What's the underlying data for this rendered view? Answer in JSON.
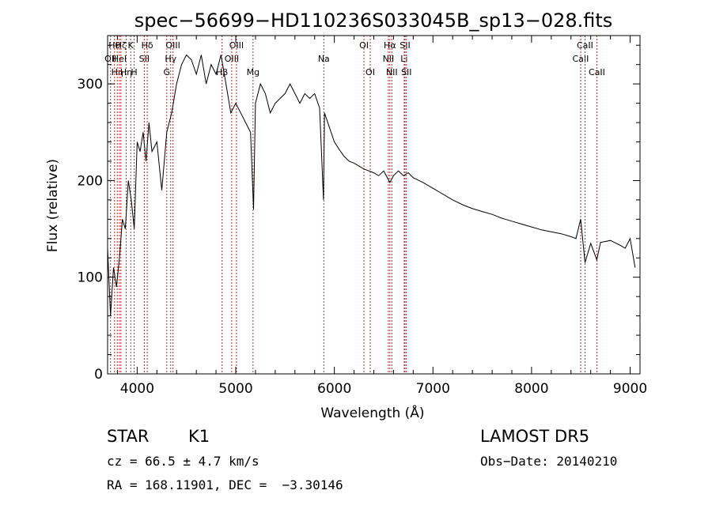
{
  "chart_data": {
    "type": "line",
    "title": "spec−56699−HD110236S033045B_sp13−028.fits",
    "xlabel": "Wavelength (Å)",
    "ylabel": "Flux (relative)",
    "xlim": [
      3700,
      9100
    ],
    "ylim": [
      0,
      350
    ],
    "xticks": [
      4000,
      5000,
      6000,
      7000,
      8000,
      9000
    ],
    "yticks": [
      0,
      100,
      200,
      300
    ],
    "grid": false,
    "series": [
      {
        "x": [
          3700,
          3730,
          3760,
          3790,
          3820,
          3850,
          3880,
          3910,
          3940,
          3970,
          4000,
          4030,
          4060,
          4090,
          4120,
          4150,
          4200,
          4250,
          4300,
          4350,
          4400,
          4450,
          4500,
          4550,
          4600,
          4650,
          4700,
          4750,
          4800,
          4850,
          4900,
          4950,
          5000,
          5050,
          5100,
          5150,
          5180,
          5200,
          5250,
          5300,
          5350,
          5400,
          5450,
          5500,
          5550,
          5600,
          5650,
          5700,
          5750,
          5800,
          5850,
          5890,
          5900,
          5950,
          6000,
          6050,
          6100,
          6150,
          6200,
          6250,
          6300,
          6350,
          6400,
          6450,
          6500,
          6563,
          6600,
          6650,
          6700,
          6750,
          6800,
          6900,
          7000,
          7100,
          7200,
          7300,
          7400,
          7500,
          7600,
          7700,
          7800,
          7900,
          8000,
          8100,
          8200,
          8300,
          8400,
          8450,
          8498,
          8542,
          8600,
          8662,
          8700,
          8800,
          8900,
          8950,
          9000,
          9050
        ],
        "y": [
          130,
          60,
          110,
          90,
          120,
          160,
          150,
          200,
          180,
          150,
          240,
          230,
          250,
          220,
          260,
          230,
          240,
          190,
          250,
          270,
          300,
          320,
          330,
          325,
          310,
          330,
          300,
          320,
          310,
          330,
          300,
          270,
          280,
          270,
          260,
          250,
          170,
          280,
          300,
          290,
          270,
          280,
          285,
          290,
          300,
          290,
          280,
          290,
          285,
          290,
          275,
          180,
          270,
          255,
          240,
          232,
          225,
          220,
          218,
          215,
          212,
          210,
          208,
          205,
          210,
          198,
          205,
          210,
          205,
          208,
          203,
          198,
          192,
          186,
          180,
          175,
          171,
          168,
          165,
          161,
          158,
          155,
          152,
          149,
          147,
          145,
          142,
          140,
          160,
          115,
          135,
          118,
          136,
          138,
          133,
          130,
          140,
          110
        ]
      }
    ],
    "line_markers": [
      {
        "x": 3730,
        "row": 1,
        "label": "OII"
      },
      {
        "x": 3770,
        "row": 0,
        "label": "Hθ"
      },
      {
        "x": 3798,
        "row": 2,
        "label": "Hη"
      },
      {
        "x": 3820,
        "row": 1,
        "label": "HeI"
      },
      {
        "x": 3835,
        "row": 0,
        "label": "Hζ"
      },
      {
        "x": 3889,
        "row": 2,
        "label": "Hη"
      },
      {
        "x": 3934,
        "row": 0,
        "label": "K"
      },
      {
        "x": 3969,
        "row": 2,
        "label": "H"
      },
      {
        "x": 4072,
        "row": 1,
        "label": "SII"
      },
      {
        "x": 4102,
        "row": 0,
        "label": "Hδ"
      },
      {
        "x": 4300,
        "row": 2,
        "label": "G"
      },
      {
        "x": 4340,
        "row": 1,
        "label": "Hγ"
      },
      {
        "x": 4363,
        "row": 0,
        "label": "OIII"
      },
      {
        "x": 4861,
        "row": 2,
        "label": "Hβ"
      },
      {
        "x": 4959,
        "row": 1,
        "label": "OIII"
      },
      {
        "x": 5007,
        "row": 0,
        "label": "OIII"
      },
      {
        "x": 5175,
        "row": 2,
        "label": "Mg"
      },
      {
        "x": 5893,
        "row": 1,
        "label": "Na"
      },
      {
        "x": 6300,
        "row": 0,
        "label": "OI"
      },
      {
        "x": 6364,
        "row": 2,
        "label": "OI"
      },
      {
        "x": 6548,
        "row": 1,
        "label": "NII"
      },
      {
        "x": 6563,
        "row": 0,
        "label": "Hα"
      },
      {
        "x": 6583,
        "row": 2,
        "label": "NII"
      },
      {
        "x": 6708,
        "row": 1,
        "label": "Li"
      },
      {
        "x": 6717,
        "row": 0,
        "label": "SII"
      },
      {
        "x": 6731,
        "row": 2,
        "label": "SII"
      },
      {
        "x": 8498,
        "row": 1,
        "label": "CaII"
      },
      {
        "x": 8542,
        "row": 0,
        "label": "CaII"
      },
      {
        "x": 8662,
        "row": 2,
        "label": "CaII"
      }
    ]
  },
  "info": {
    "class": "STAR",
    "subclass": "K1",
    "survey": "LAMOST DR5",
    "cz": "cz = 66.5 ± 4.7 km/s",
    "obsdate": "Obs−Date: 20140210",
    "radec": "RA = 168.11901, DEC =  −3.30146"
  }
}
